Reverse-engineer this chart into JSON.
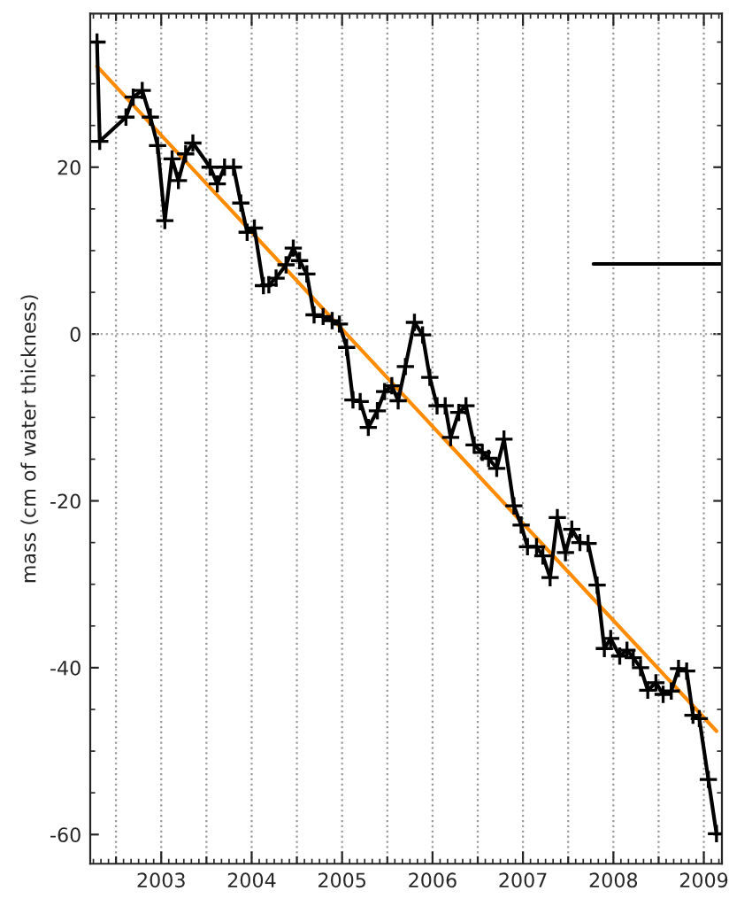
{
  "chart_data": {
    "type": "line",
    "ylabel": "mass (cm of water thickness)",
    "xlim": [
      2002.215,
      2009.2
    ],
    "ylim": [
      -63.5,
      38.4
    ],
    "xticks": [
      {
        "value": 2002.5,
        "label": null
      },
      2003,
      {
        "value": 2003.5,
        "label": null
      },
      2004,
      {
        "value": 2004.5,
        "label": null
      },
      2005,
      {
        "value": 2005.5,
        "label": null
      },
      2006,
      {
        "value": 2006.5,
        "label": null
      },
      2007,
      {
        "value": 2007.5,
        "label": null
      },
      2008,
      {
        "value": 2008.5,
        "label": null
      },
      2009
    ],
    "yticks": [
      -60,
      -40,
      -20,
      0,
      20
    ],
    "grid": "x",
    "legend": false,
    "ref_lines": [
      {
        "axis": "y",
        "value": 0,
        "color": "#aaaaaa",
        "line_style": "dotted"
      }
    ],
    "series": [
      {
        "color": "#000000",
        "marker": "cross",
        "line_style": "solid",
        "x": [
          2002.29,
          2002.32,
          2002.61,
          2002.69,
          2002.79,
          2002.88,
          2002.96,
          2003.04,
          2003.12,
          2003.19,
          2003.27,
          2003.35,
          2003.54,
          2003.62,
          2003.7,
          2003.8,
          2003.88,
          2003.95,
          2004.03,
          2004.13,
          2004.19,
          2004.27,
          2004.38,
          2004.46,
          2004.53,
          2004.61,
          2004.69,
          2004.79,
          2004.89,
          2004.97,
          2005.05,
          2005.12,
          2005.2,
          2005.29,
          2005.39,
          2005.47,
          2005.55,
          2005.62,
          2005.7,
          2005.8,
          2005.89,
          2005.97,
          2006.05,
          2006.14,
          2006.2,
          2006.29,
          2006.37,
          2006.46,
          2006.55,
          2006.62,
          2006.71,
          2006.79,
          2006.9,
          2006.98,
          2007.05,
          2007.15,
          2007.22,
          2007.3,
          2007.38,
          2007.47,
          2007.54,
          2007.63,
          2007.72,
          2007.82,
          2007.9,
          2007.97,
          2008.07,
          2008.15,
          2008.22,
          2008.3,
          2008.38,
          2008.47,
          2008.55,
          2008.64,
          2008.72,
          2008.81,
          2008.88,
          2008.95,
          2009.05,
          2009.14
        ],
        "values": [
          35.0,
          23.1,
          26.0,
          28.4,
          29.2,
          26.0,
          22.6,
          13.6,
          21.0,
          18.4,
          21.6,
          22.9,
          20.0,
          18.0,
          20.0,
          20.0,
          15.7,
          12.2,
          12.7,
          5.8,
          5.9,
          6.7,
          8.3,
          10.3,
          8.8,
          7.2,
          2.3,
          2.1,
          1.6,
          1.2,
          -1.6,
          -7.9,
          -8.1,
          -11.2,
          -9.2,
          -6.9,
          -6.2,
          -8.0,
          -3.9,
          1.4,
          -0.1,
          -5.2,
          -8.6,
          -8.6,
          -12.4,
          -9.4,
          -8.6,
          -13.3,
          -14.2,
          -14.9,
          -16.1,
          -12.6,
          -20.6,
          -22.9,
          -25.5,
          -25.5,
          -26.6,
          -29.2,
          -22.0,
          -26.2,
          -23.4,
          -25.0,
          -25.1,
          -30.1,
          -37.7,
          -36.5,
          -38.6,
          -37.9,
          -38.8,
          -40.0,
          -42.7,
          -41.8,
          -43.2,
          -42.8,
          -40.1,
          -40.4,
          -45.7,
          -46.1,
          -53.4,
          -59.9
        ]
      },
      {
        "color": "#ff8c00",
        "marker": "none",
        "line_style": "solid",
        "x": [
          2002.29,
          2009.14
        ],
        "values": [
          32.1,
          -47.6
        ]
      },
      {
        "color": "#000000",
        "marker": "none",
        "line_style": "solid",
        "x": [
          2007.78,
          2009.2
        ],
        "values": [
          8.4,
          8.4
        ]
      }
    ]
  }
}
